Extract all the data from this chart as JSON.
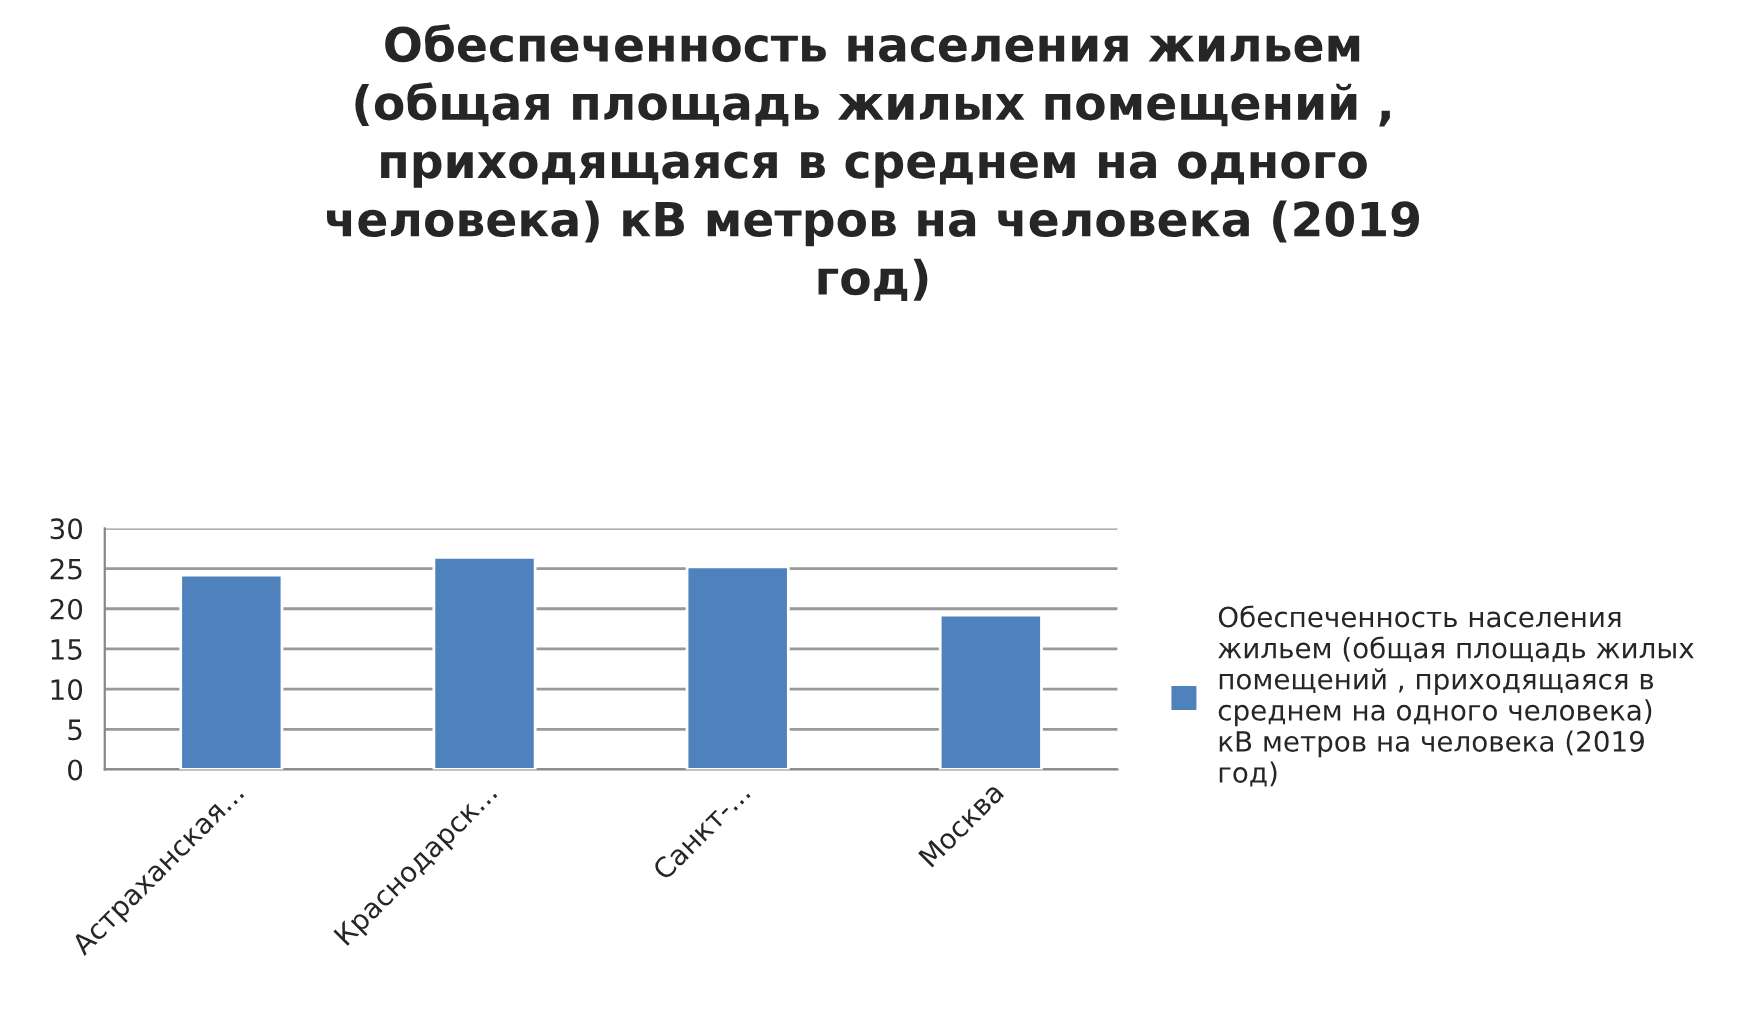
{
  "chart_data": {
    "type": "bar",
    "title": "Обеспеченность населения жильем\n(общая площадь жилых помещений ,\nприходящаяся в среднем на одного\nчеловека) кВ метров на человека (2019\nгод)",
    "categories": [
      "Астраханская...",
      "Краснодарск...",
      "Санкт-...",
      "Москва"
    ],
    "series": [
      {
        "name": "Обеспеченность населения жильем (общая площадь жилых помещений , приходящаяся в среднем на одного человека) кВ метров на человека (2019 год)",
        "color": "#4f81bd",
        "values": [
          24.2,
          26.4,
          25.2,
          19.2
        ]
      }
    ],
    "ylim": [
      0,
      30
    ],
    "yticks": [
      0,
      5,
      10,
      15,
      20,
      25,
      30
    ],
    "grid": "y",
    "legend": "right"
  }
}
